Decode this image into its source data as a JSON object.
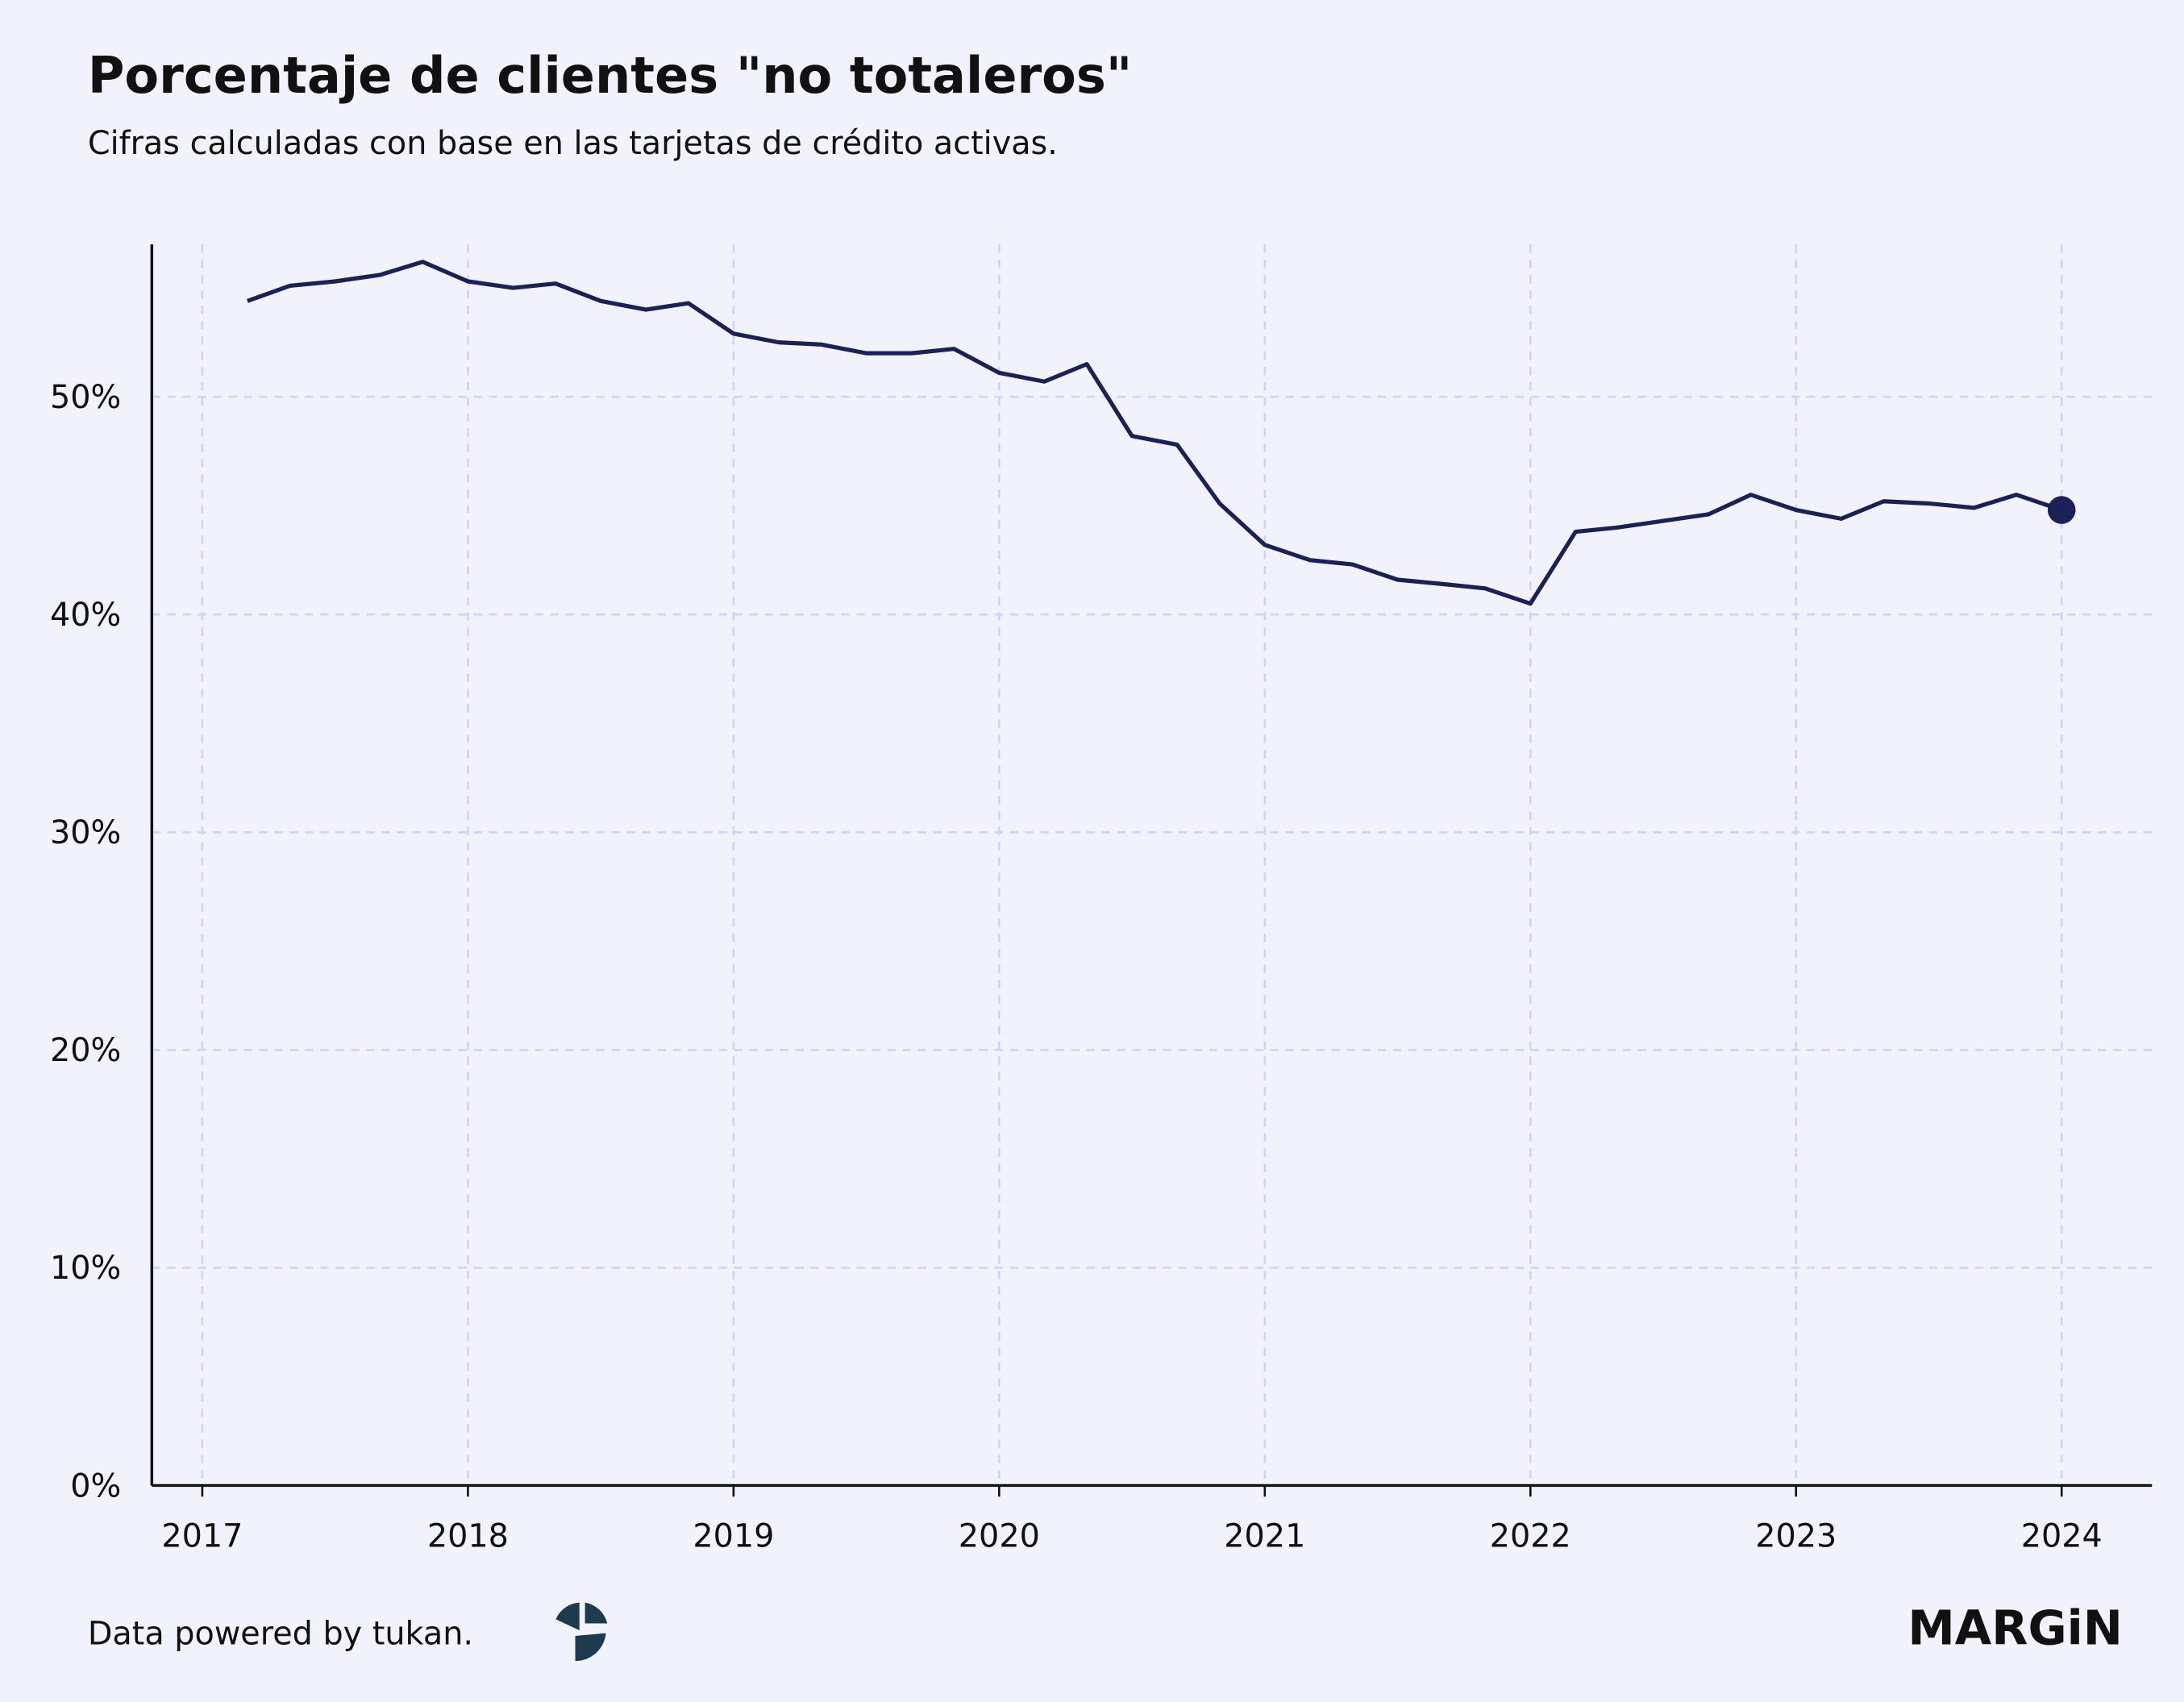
{
  "chart_data": {
    "type": "line",
    "title": "Porcentaje de clientes \"no totaleros\"",
    "subtitle": "Cifras calculadas con base en las tarjetas de crédito activas.",
    "source": "Data powered by tukan.",
    "brand": "MARGiN",
    "x": [
      2017.17,
      2017.33,
      2017.5,
      2017.67,
      2017.83,
      2018,
      2018.17,
      2018.33,
      2018.5,
      2018.67,
      2018.83,
      2019,
      2019.17,
      2019.33,
      2019.5,
      2019.67,
      2019.83,
      2020,
      2020.17,
      2020.33,
      2020.5,
      2020.67,
      2020.83,
      2021,
      2021.17,
      2021.33,
      2021.5,
      2021.67,
      2021.83,
      2022,
      2022.17,
      2022.33,
      2022.5,
      2022.67,
      2022.83,
      2023,
      2023.17,
      2023.33,
      2023.5,
      2023.67,
      2023.83,
      2024
    ],
    "series": [
      {
        "color": "#1b2155",
        "values": [
          54.4,
          55.1,
          55.3,
          55.6,
          56.2,
          55.3,
          55.0,
          55.2,
          54.4,
          54.0,
          54.3,
          52.9,
          52.5,
          52.4,
          52.0,
          52.0,
          52.2,
          51.1,
          50.7,
          51.5,
          48.2,
          47.8,
          45.1,
          43.2,
          42.5,
          42.3,
          41.6,
          41.4,
          41.2,
          40.5,
          43.8,
          44.0,
          44.3,
          44.6,
          45.5,
          44.8,
          44.4,
          45.2,
          45.1,
          44.9,
          45.5,
          44.8
        ]
      }
    ],
    "last_point_marker": true,
    "xlim": [
      2016.81,
      2024.34
    ],
    "xticks": [
      2017,
      2018,
      2019,
      2020,
      2021,
      2022,
      2023,
      2024
    ],
    "ylim": [
      0,
      57
    ],
    "yticks": [
      {
        "value": 0,
        "label": "0%"
      },
      {
        "value": 10,
        "label": "10%"
      },
      {
        "value": 20,
        "label": "20%"
      },
      {
        "value": 30,
        "label": "30%"
      },
      {
        "value": 40,
        "label": "40%"
      },
      {
        "value": 50,
        "label": "50%"
      }
    ],
    "grid": true
  }
}
